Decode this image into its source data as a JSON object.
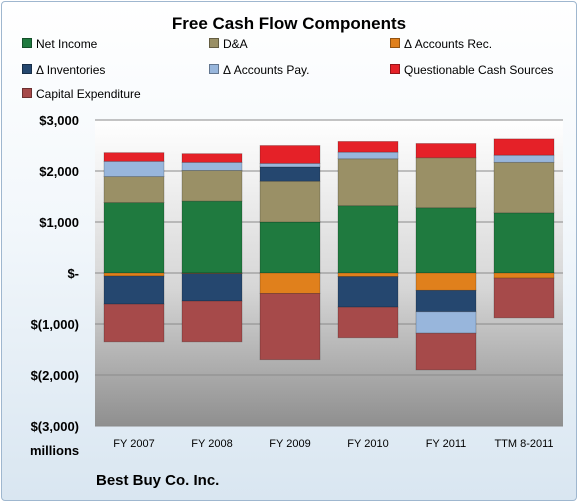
{
  "chart_data": {
    "type": "bar",
    "stacked": true,
    "title": "Free Cash Flow Components",
    "ylabel": "millions",
    "subtitle_caption": "Best Buy Co. Inc.",
    "categories": [
      "FY 2007",
      "FY 2008",
      "FY 2009",
      "FY 2010",
      "FY 2011",
      "TTM 8-2011"
    ],
    "ylim": [
      -3000,
      3000
    ],
    "yticks": [
      {
        "value": 3000,
        "label": "$3,000"
      },
      {
        "value": 2000,
        "label": "$2,000"
      },
      {
        "value": 1000,
        "label": "$1,000"
      },
      {
        "value": 0,
        "label": "$-"
      },
      {
        "value": -1000,
        "label": "$(1,000)"
      },
      {
        "value": -2000,
        "label": "$(2,000)"
      },
      {
        "value": -3000,
        "label": "$(3,000)"
      }
    ],
    "series": [
      {
        "name": "Net Income",
        "color": "#1f7a3f",
        "values": [
          1380,
          1410,
          1000,
          1320,
          1280,
          1180
        ]
      },
      {
        "name": "D&A",
        "color": "#9a9066",
        "values": [
          510,
          600,
          800,
          920,
          980,
          990
        ]
      },
      {
        "name": "Δ Accounts Rec.",
        "color": "#e0801c",
        "values": [
          -60,
          -10,
          -400,
          -70,
          -340,
          -100
        ]
      },
      {
        "name": "Δ Inventories",
        "color": "#25476f",
        "values": [
          -550,
          -540,
          280,
          -600,
          -420,
          0
        ]
      },
      {
        "name": "Δ Accounts Pay.",
        "color": "#98b6dc",
        "values": [
          300,
          160,
          70,
          130,
          -420,
          140
        ]
      },
      {
        "name": "Questionable Cash Sources",
        "color": "#e52128",
        "values": [
          170,
          170,
          350,
          210,
          280,
          320
        ]
      },
      {
        "name": "Capital Expenditure",
        "color": "#a64a4a",
        "values": [
          -740,
          -800,
          -1300,
          -600,
          -720,
          -780
        ]
      }
    ],
    "grid": true,
    "legend_position": "top"
  }
}
